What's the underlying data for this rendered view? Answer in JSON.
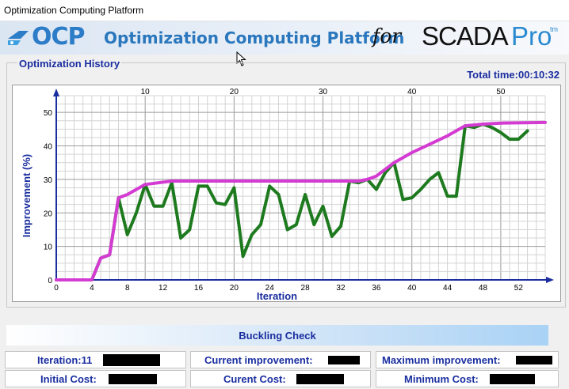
{
  "window": {
    "title": "Optimization Computing Platform"
  },
  "banner": {
    "logo_text": "OCP",
    "title": "Optimization Computing Platform",
    "for_text": "for",
    "scada_text": "SCADA",
    "pro_text": "Pro",
    "tm_text": "tm",
    "colors": {
      "accent": "#2a77bd",
      "logo": "#2d7cc8",
      "pro": "#2a8ad0"
    }
  },
  "history": {
    "group_title": "Optimization History",
    "total_time": "Total time:00:10:32"
  },
  "chart_data": {
    "type": "line",
    "xlabel": "Iteration",
    "ylabel": "Improvement (%)",
    "xlim": [
      0,
      55
    ],
    "ylim": [
      0,
      55
    ],
    "x_ticks_bottom": [
      0,
      4,
      8,
      12,
      16,
      20,
      24,
      28,
      32,
      36,
      40,
      44,
      48,
      52
    ],
    "x_ticks_top": [
      10,
      20,
      30,
      40,
      50
    ],
    "y_ticks": [
      0,
      10,
      20,
      30,
      40,
      50
    ],
    "grid": true,
    "series": [
      {
        "color": "#1e7a1e",
        "points": [
          [
            0,
            0
          ],
          [
            1,
            0
          ],
          [
            2,
            0
          ],
          [
            3,
            0
          ],
          [
            4,
            0
          ],
          [
            5,
            6.5
          ],
          [
            6,
            7.5
          ],
          [
            7,
            24.5
          ],
          [
            8,
            13.5
          ],
          [
            9,
            20
          ],
          [
            10,
            28.5
          ],
          [
            11,
            22
          ],
          [
            12,
            22
          ],
          [
            13,
            29
          ],
          [
            14,
            12.5
          ],
          [
            15,
            15
          ],
          [
            16,
            28
          ],
          [
            17,
            28
          ],
          [
            18,
            23
          ],
          [
            19,
            22.5
          ],
          [
            20,
            27.5
          ],
          [
            21,
            7
          ],
          [
            22,
            13.5
          ],
          [
            23,
            16.5
          ],
          [
            24,
            28
          ],
          [
            25,
            25.5
          ],
          [
            26,
            15
          ],
          [
            27,
            16.5
          ],
          [
            28,
            25.5
          ],
          [
            29,
            16.5
          ],
          [
            30,
            22
          ],
          [
            31,
            13
          ],
          [
            32,
            16
          ],
          [
            33,
            29.5
          ],
          [
            34,
            29
          ],
          [
            35,
            30
          ],
          [
            36,
            27
          ],
          [
            37,
            32
          ],
          [
            38,
            35
          ],
          [
            39,
            24
          ],
          [
            40,
            24.5
          ],
          [
            41,
            27
          ],
          [
            42,
            30
          ],
          [
            43,
            32
          ],
          [
            44,
            25
          ],
          [
            45,
            25
          ],
          [
            46,
            46
          ],
          [
            47,
            45.5
          ],
          [
            48,
            46.5
          ],
          [
            49,
            45.5
          ],
          [
            50,
            44
          ],
          [
            51,
            42
          ],
          [
            52,
            42
          ],
          [
            53,
            44.5
          ]
        ]
      },
      {
        "color": "#d43bd2",
        "points": [
          [
            0,
            0
          ],
          [
            4,
            0
          ],
          [
            5,
            6.5
          ],
          [
            6,
            7.5
          ],
          [
            7,
            24.5
          ],
          [
            8,
            25.5
          ],
          [
            9,
            27
          ],
          [
            10,
            28.5
          ],
          [
            13,
            29.5
          ],
          [
            20,
            29.5
          ],
          [
            30,
            29.5
          ],
          [
            34,
            29.5
          ],
          [
            35,
            30
          ],
          [
            36,
            31
          ],
          [
            37,
            33
          ],
          [
            38,
            35
          ],
          [
            39,
            36.5
          ],
          [
            40,
            38
          ],
          [
            42,
            40.5
          ],
          [
            44,
            43
          ],
          [
            46,
            46
          ],
          [
            48,
            46.5
          ],
          [
            50,
            46.8
          ],
          [
            55,
            47
          ]
        ]
      }
    ]
  },
  "buckling": {
    "title": "Buckling Check"
  },
  "stats": {
    "iteration_label": "Iteration:11",
    "current_improvement_label": "Current improvement:",
    "maximum_improvement_label": "Maximum improvement:",
    "initial_cost_label": "Initial Cost:",
    "current_cost_label": "Curent Cost:",
    "minimum_cost_label": "Minimum Cost:"
  }
}
